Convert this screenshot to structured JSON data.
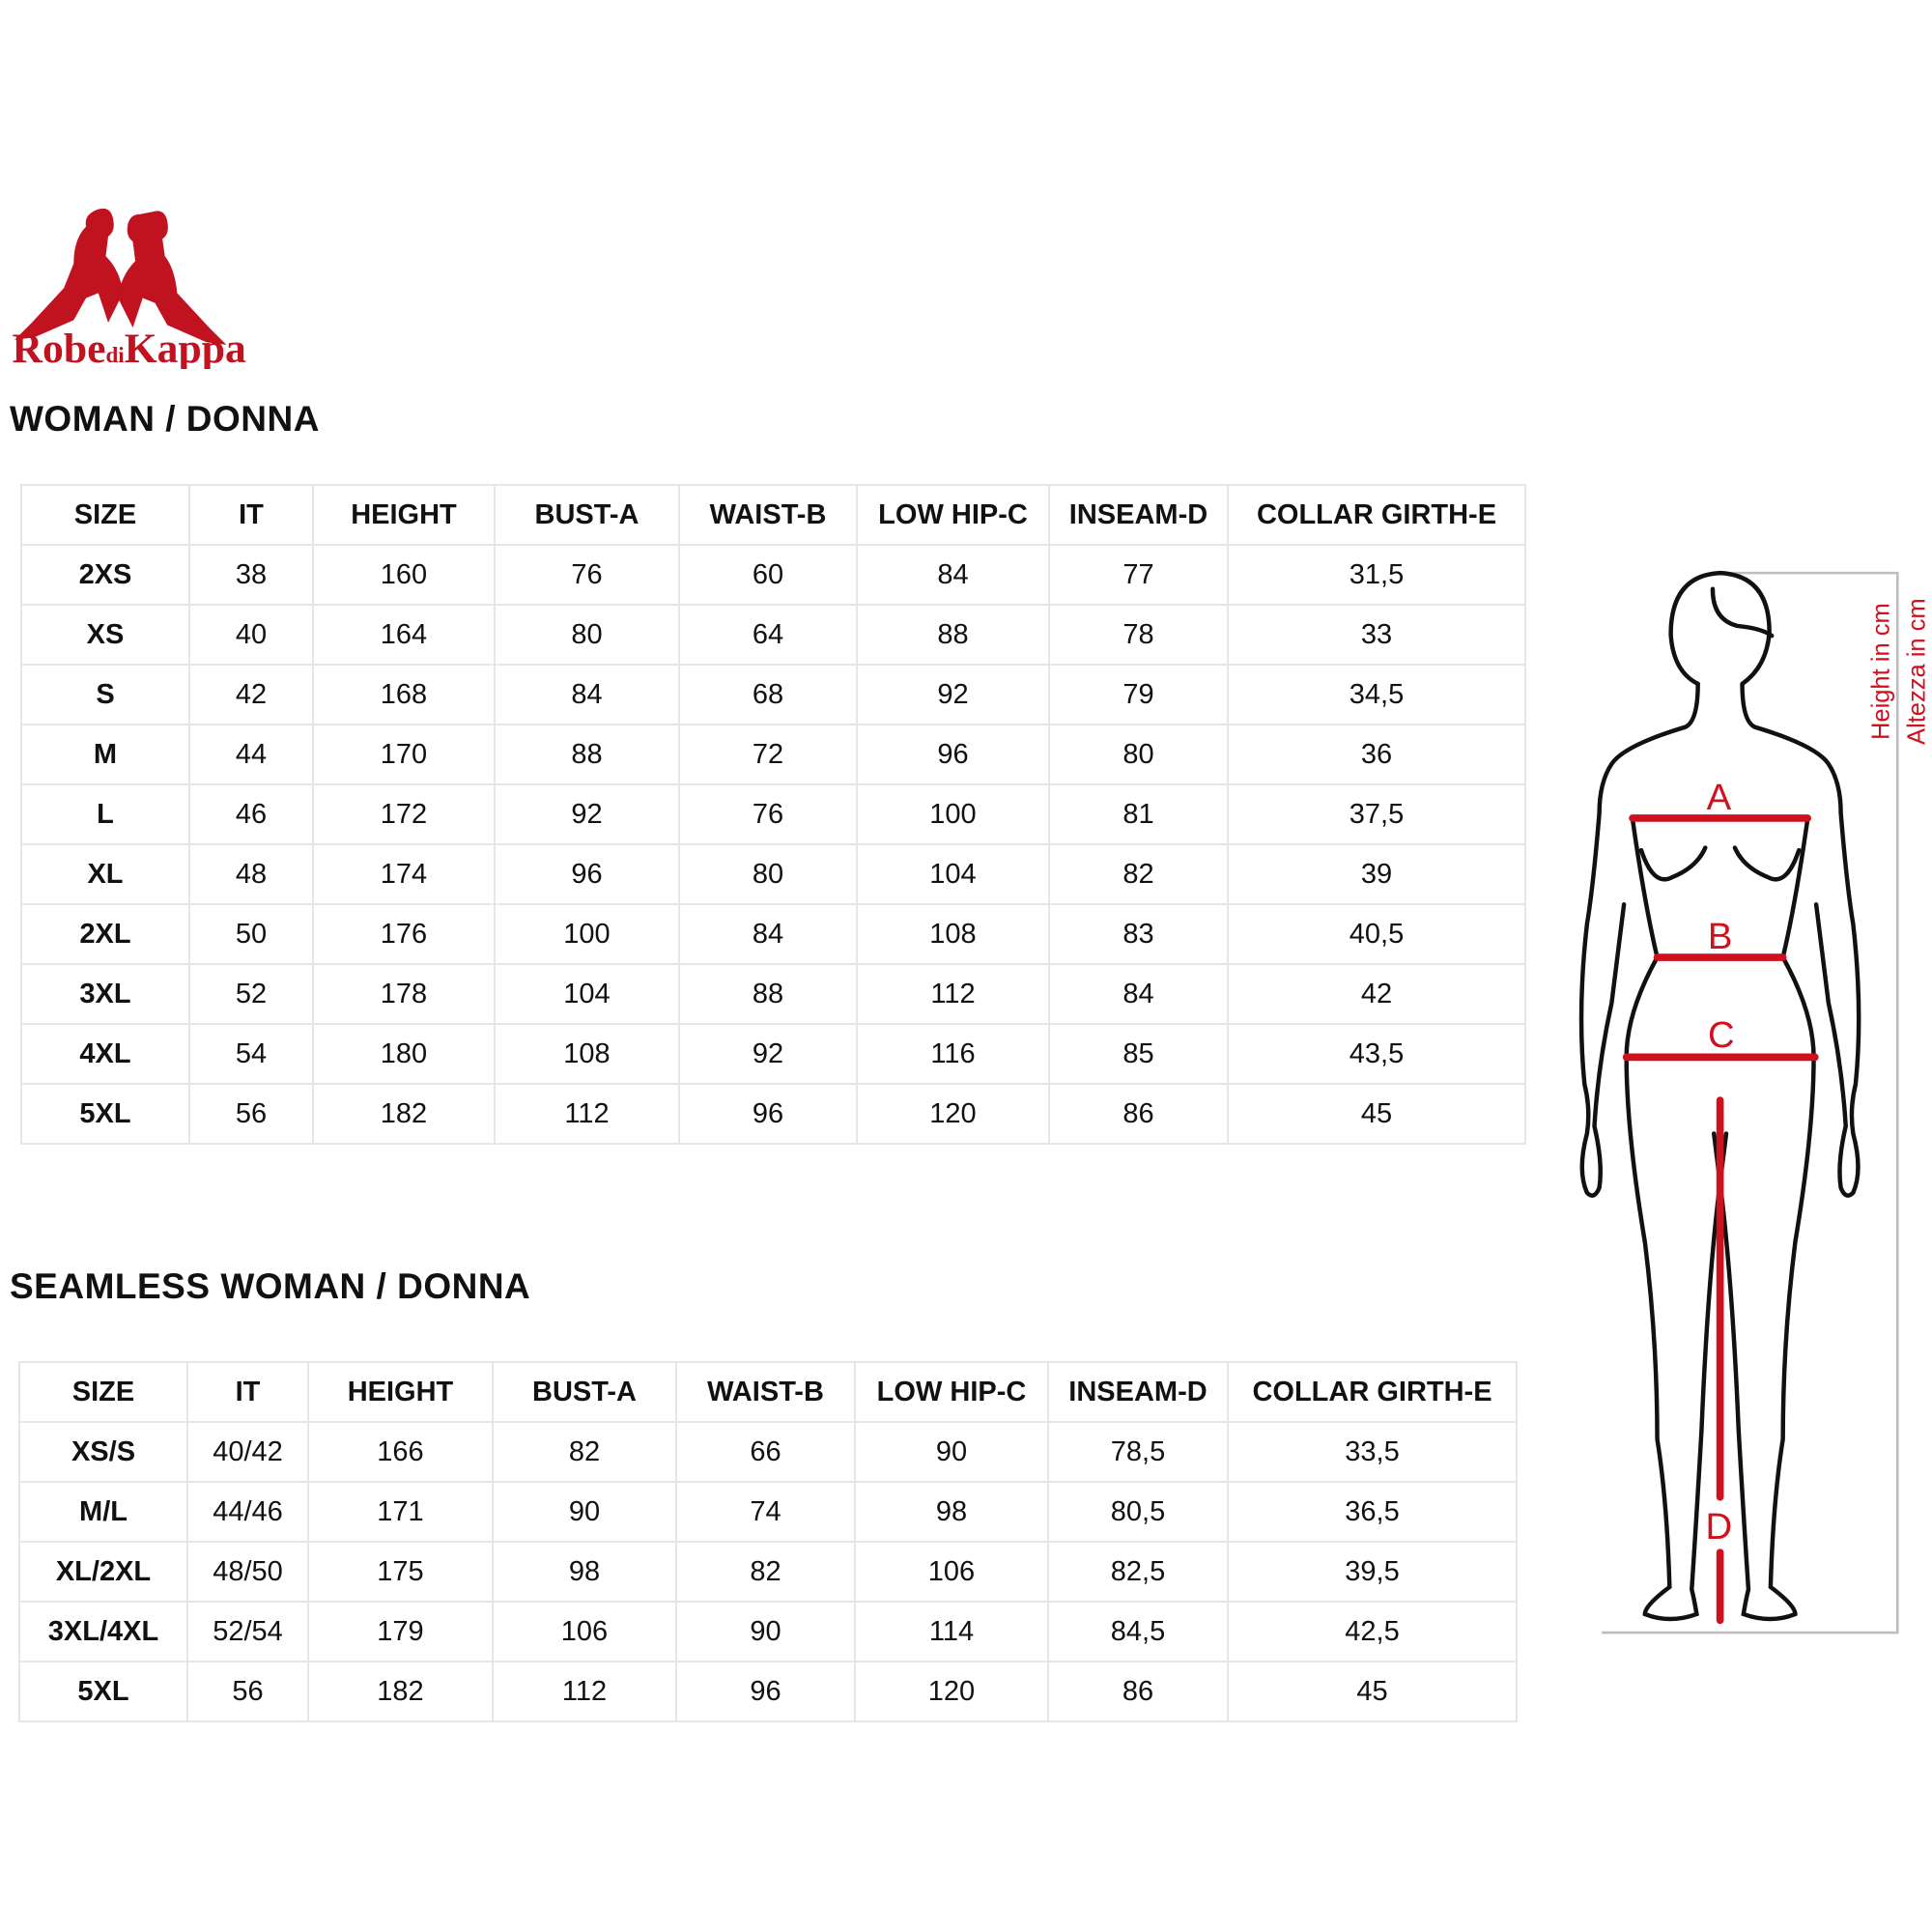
{
  "brand": {
    "logo_text": "Robe di Kappa",
    "color": "#c0121f"
  },
  "tables": [
    {
      "title": "WOMAN / DONNA",
      "columns": [
        "SIZE",
        "IT",
        "HEIGHT",
        "BUST-A",
        "WAIST-B",
        "LOW HIP-C",
        "INSEAM-D",
        "COLLAR GIRTH-E"
      ],
      "rows": [
        [
          "2XS",
          "38",
          "160",
          "76",
          "60",
          "84",
          "77",
          "31,5"
        ],
        [
          "XS",
          "40",
          "164",
          "80",
          "64",
          "88",
          "78",
          "33"
        ],
        [
          "S",
          "42",
          "168",
          "84",
          "68",
          "92",
          "79",
          "34,5"
        ],
        [
          "M",
          "44",
          "170",
          "88",
          "72",
          "96",
          "80",
          "36"
        ],
        [
          "L",
          "46",
          "172",
          "92",
          "76",
          "100",
          "81",
          "37,5"
        ],
        [
          "XL",
          "48",
          "174",
          "96",
          "80",
          "104",
          "82",
          "39"
        ],
        [
          "2XL",
          "50",
          "176",
          "100",
          "84",
          "108",
          "83",
          "40,5"
        ],
        [
          "3XL",
          "52",
          "178",
          "104",
          "88",
          "112",
          "84",
          "42"
        ],
        [
          "4XL",
          "54",
          "180",
          "108",
          "92",
          "116",
          "85",
          "43,5"
        ],
        [
          "5XL",
          "56",
          "182",
          "112",
          "96",
          "120",
          "86",
          "45"
        ]
      ]
    },
    {
      "title": "SEAMLESS WOMAN / DONNA",
      "columns": [
        "SIZE",
        "IT",
        "HEIGHT",
        "BUST-A",
        "WAIST-B",
        "LOW HIP-C",
        "INSEAM-D",
        "COLLAR GIRTH-E"
      ],
      "rows": [
        [
          "XS/S",
          "40/42",
          "166",
          "82",
          "66",
          "90",
          "78,5",
          "33,5"
        ],
        [
          "M/L",
          "44/46",
          "171",
          "90",
          "74",
          "98",
          "80,5",
          "36,5"
        ],
        [
          "XL/2XL",
          "48/50",
          "175",
          "98",
          "82",
          "106",
          "82,5",
          "39,5"
        ],
        [
          "3XL/4XL",
          "52/54",
          "179",
          "106",
          "90",
          "114",
          "84,5",
          "42,5"
        ],
        [
          "5XL",
          "56",
          "182",
          "112",
          "96",
          "120",
          "86",
          "45"
        ]
      ]
    }
  ],
  "figure": {
    "labels": {
      "a": "A",
      "b": "B",
      "c": "C",
      "d": "D"
    },
    "height_label_en": "Height in cm",
    "height_label_it": "Altezza in cm",
    "accent_color": "#d0101c"
  }
}
